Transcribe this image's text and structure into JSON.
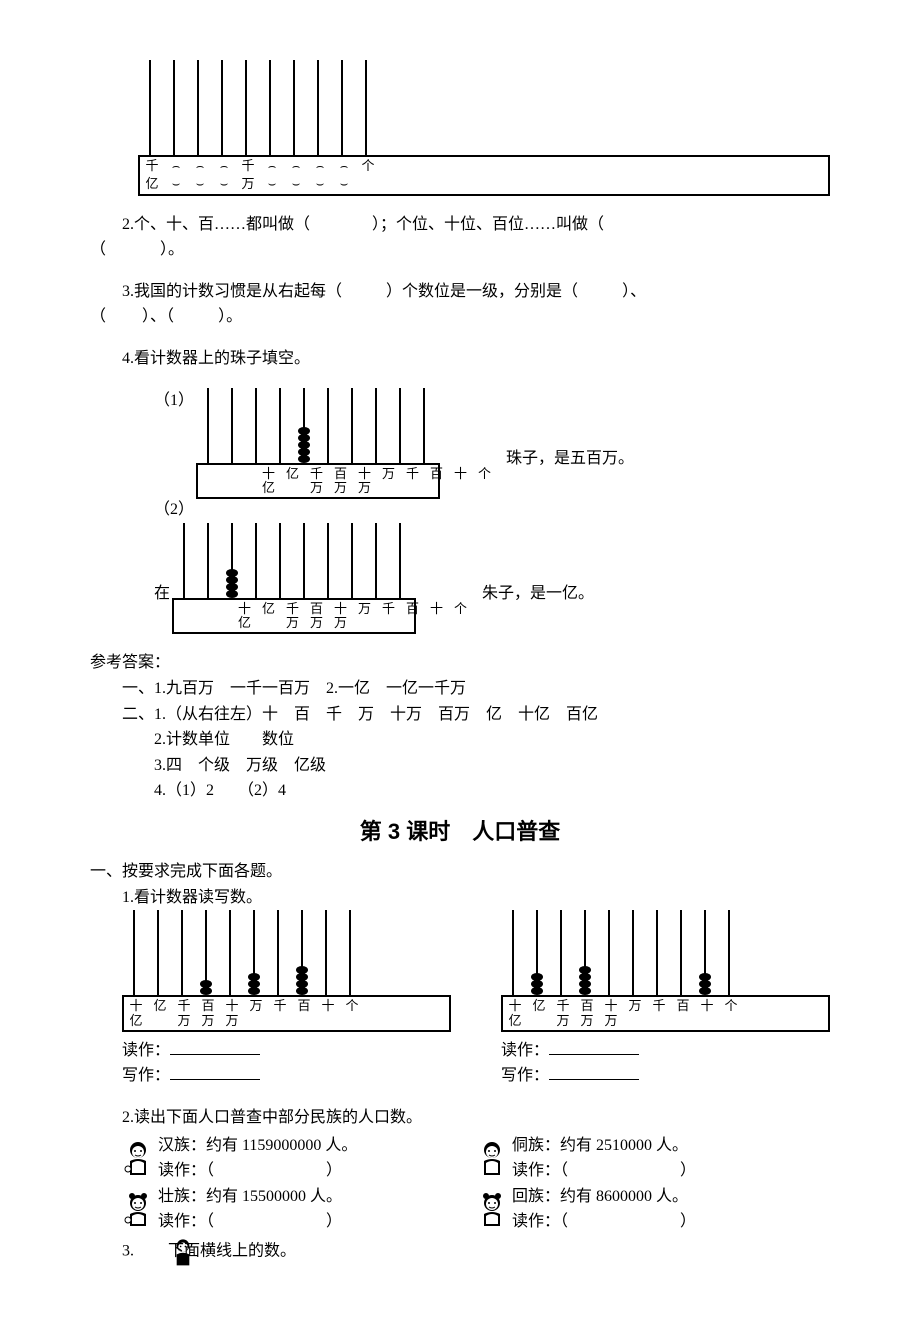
{
  "page": {
    "bg": "#ffffff",
    "text_color": "#000000",
    "font": "SimSun",
    "fontsize": 16
  },
  "abacus_top": {
    "rods": 10,
    "rod_height": 95,
    "beads": [
      0,
      0,
      0,
      0,
      0,
      0,
      0,
      0,
      0,
      0
    ],
    "labels_top": [
      "千",
      "⌢",
      "⌢",
      "⌢",
      "千",
      "⌢",
      "⌢",
      "⌢",
      "⌢",
      "个"
    ],
    "labels_bot": [
      "亿",
      "⌣",
      "⌣",
      "⌣",
      "万",
      "⌣",
      "⌣",
      "⌣",
      "⌣",
      ""
    ],
    "note": "arcs indicate blank positions between 千亿, 千万, 个"
  },
  "q2": {
    "prefix": "2.个、十、百……都叫做（",
    "mid": "）；个位、十位、百位……叫做（",
    "suffix": "）。"
  },
  "q3": {
    "pre": "3.我国的计数习惯是从右起每（",
    "mid1": "）个数位是一级，分别是（",
    "mid2": "）、（",
    "mid3": "）、（",
    "suffix": "）。"
  },
  "q4": {
    "title": "4.看计数器上的珠子填空。",
    "sub1_label": "（1）",
    "sub2_label": "（2）",
    "abacus1": {
      "rods": 10,
      "rod_height": 75,
      "beads": [
        0,
        0,
        0,
        0,
        5,
        0,
        0,
        0,
        0,
        0
      ],
      "labels": [
        [
          "十",
          "亿"
        ],
        [
          "亿",
          ""
        ],
        [
          "千",
          "万"
        ],
        [
          "百",
          "万"
        ],
        [
          "十",
          "万"
        ],
        [
          "万",
          ""
        ],
        [
          "千",
          ""
        ],
        [
          "百",
          ""
        ],
        [
          "十",
          ""
        ],
        [
          "个",
          ""
        ]
      ],
      "right_text_a": "珠子，是五百万。"
    },
    "abacus2": {
      "rods": 10,
      "rod_height": 75,
      "beads": [
        0,
        0,
        4,
        0,
        0,
        0,
        0,
        0,
        0,
        0
      ],
      "labels": [
        [
          "十",
          "亿"
        ],
        [
          "亿",
          ""
        ],
        [
          "千",
          "万"
        ],
        [
          "百",
          "万"
        ],
        [
          "十",
          "万"
        ],
        [
          "万",
          ""
        ],
        [
          "千",
          ""
        ],
        [
          "百",
          ""
        ],
        [
          "十",
          ""
        ],
        [
          "个",
          ""
        ]
      ],
      "left_text": "在",
      "right_text": "朱子，是一亿。"
    }
  },
  "answers": {
    "heading": "参考答案：",
    "a1": "一、1.九百万　一千一百万　2.一亿　一亿一千万",
    "a2": "二、1.（从右往左）十　百　千　万　十万　百万　亿　十亿　百亿",
    "a3": "2.计数单位　　数位",
    "a4": "3.四　个级　万级　亿级",
    "a5": "4.（1）2　　（2）4"
  },
  "lesson3": {
    "title": "第 3 课时　人口普查",
    "sec1": "一、按要求完成下面各题。",
    "q1": {
      "title": "1.看计数器读写数。",
      "abacusA": {
        "rods": 10,
        "rod_height": 85,
        "beads": [
          0,
          0,
          0,
          2,
          0,
          3,
          0,
          4,
          0,
          0
        ],
        "labels": [
          [
            "十",
            "亿"
          ],
          [
            "亿",
            ""
          ],
          [
            "千",
            "万"
          ],
          [
            "百",
            "万"
          ],
          [
            "十",
            "万"
          ],
          [
            "万",
            ""
          ],
          [
            "千",
            ""
          ],
          [
            "百",
            ""
          ],
          [
            "十",
            ""
          ],
          [
            "个",
            ""
          ]
        ]
      },
      "abacusB": {
        "rods": 10,
        "rod_height": 85,
        "beads": [
          0,
          3,
          0,
          4,
          0,
          0,
          0,
          0,
          3,
          0
        ],
        "labels": [
          [
            "十",
            "亿"
          ],
          [
            "亿",
            ""
          ],
          [
            "千",
            "万"
          ],
          [
            "百",
            "万"
          ],
          [
            "十",
            "万"
          ],
          [
            "万",
            ""
          ],
          [
            "千",
            ""
          ],
          [
            "百",
            ""
          ],
          [
            "十",
            ""
          ],
          [
            "个",
            ""
          ]
        ]
      },
      "read_label": "读作：",
      "write_label": "写作："
    },
    "q2": {
      "title": "2.读出下面人口普查中部分民族的人口数。",
      "row1": {
        "left": {
          "label": "汉族：约有 1159000000 人。",
          "read": "读作：（",
          "close": "）"
        },
        "right": {
          "label": "侗族：约有 2510000 人。",
          "read": "读作：（",
          "close": "）"
        }
      },
      "row2": {
        "left": {
          "label": "壮族：约有 15500000 人。",
          "read": "读作：（",
          "close": "）"
        },
        "right": {
          "label": "回族：约有 8600000 人。",
          "read": "读作：（",
          "close": "）"
        }
      }
    },
    "q3": {
      "title": "3.",
      "rest": "下面横线上的数。"
    }
  }
}
